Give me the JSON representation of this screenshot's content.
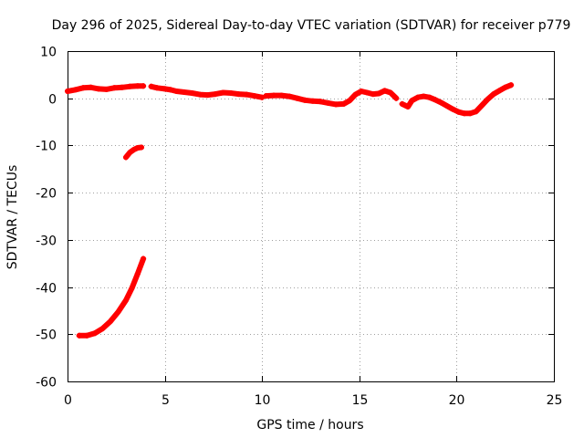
{
  "chart_data": {
    "type": "scatter",
    "title": "Day 296 of 2025, Sidereal Day-to-day VTEC variation (SDTVAR) for receiver p779",
    "xlabel": "GPS time / hours",
    "ylabel": "SDTVAR / TECUs",
    "xlim": [
      0,
      25
    ],
    "ylim": [
      -60,
      10
    ],
    "xticks": [
      0,
      5,
      10,
      15,
      20,
      25
    ],
    "yticks": [
      10,
      0,
      -10,
      -20,
      -30,
      -40,
      -50,
      -60
    ],
    "grid": true,
    "series": [
      {
        "name": "SDTVAR",
        "color": "#ff0000",
        "segments": [
          [
            [
              0.0,
              1.5
            ],
            [
              0.4,
              1.8
            ],
            [
              0.8,
              2.2
            ],
            [
              1.2,
              2.3
            ],
            [
              1.6,
              2.0
            ],
            [
              2.0,
              1.9
            ],
            [
              2.4,
              2.2
            ],
            [
              2.8,
              2.3
            ],
            [
              3.2,
              2.5
            ],
            [
              3.6,
              2.6
            ],
            [
              3.9,
              2.6
            ]
          ],
          [
            [
              4.3,
              2.5
            ],
            [
              4.6,
              2.2
            ],
            [
              5.0,
              2.0
            ],
            [
              5.3,
              1.8
            ],
            [
              5.6,
              1.5
            ],
            [
              6.0,
              1.3
            ],
            [
              6.4,
              1.1
            ],
            [
              6.8,
              0.8
            ],
            [
              7.2,
              0.7
            ],
            [
              7.6,
              0.9
            ],
            [
              8.0,
              1.2
            ],
            [
              8.4,
              1.1
            ],
            [
              8.8,
              0.9
            ],
            [
              9.2,
              0.8
            ],
            [
              9.6,
              0.5
            ],
            [
              10.0,
              0.2
            ]
          ],
          [
            [
              10.2,
              0.5
            ],
            [
              10.6,
              0.6
            ],
            [
              11.0,
              0.6
            ],
            [
              11.4,
              0.4
            ],
            [
              11.8,
              0.0
            ],
            [
              12.2,
              -0.4
            ],
            [
              12.6,
              -0.6
            ],
            [
              13.0,
              -0.7
            ],
            [
              13.4,
              -1.0
            ],
            [
              13.8,
              -1.3
            ],
            [
              14.2,
              -1.2
            ],
            [
              14.5,
              -0.5
            ],
            [
              14.8,
              0.8
            ],
            [
              15.1,
              1.5
            ],
            [
              15.4,
              1.2
            ],
            [
              15.7,
              0.9
            ],
            [
              16.0,
              1.0
            ],
            [
              16.3,
              1.6
            ],
            [
              16.6,
              1.2
            ],
            [
              16.9,
              0.0
            ]
          ],
          [
            [
              17.2,
              -1.2
            ],
            [
              17.5,
              -1.8
            ],
            [
              17.7,
              -0.5
            ],
            [
              18.0,
              0.2
            ],
            [
              18.3,
              0.4
            ],
            [
              18.6,
              0.2
            ],
            [
              18.9,
              -0.3
            ],
            [
              19.2,
              -0.9
            ],
            [
              19.5,
              -1.6
            ],
            [
              19.8,
              -2.3
            ],
            [
              20.1,
              -2.9
            ],
            [
              20.4,
              -3.2
            ],
            [
              20.7,
              -3.2
            ],
            [
              21.0,
              -2.8
            ],
            [
              21.3,
              -1.5
            ],
            [
              21.6,
              -0.2
            ],
            [
              21.9,
              0.9
            ],
            [
              22.2,
              1.6
            ],
            [
              22.5,
              2.3
            ],
            [
              22.8,
              2.8
            ]
          ],
          [
            [
              3.0,
              -12.5
            ],
            [
              3.2,
              -11.5
            ],
            [
              3.4,
              -10.9
            ],
            [
              3.6,
              -10.5
            ],
            [
              3.8,
              -10.4
            ]
          ],
          [
            [
              0.6,
              -50.3
            ],
            [
              1.0,
              -50.3
            ],
            [
              1.4,
              -49.8
            ],
            [
              1.8,
              -48.8
            ],
            [
              2.2,
              -47.3
            ],
            [
              2.6,
              -45.3
            ],
            [
              3.0,
              -42.8
            ],
            [
              3.3,
              -40.3
            ],
            [
              3.6,
              -37.2
            ],
            [
              3.9,
              -34.0
            ]
          ]
        ]
      }
    ]
  }
}
